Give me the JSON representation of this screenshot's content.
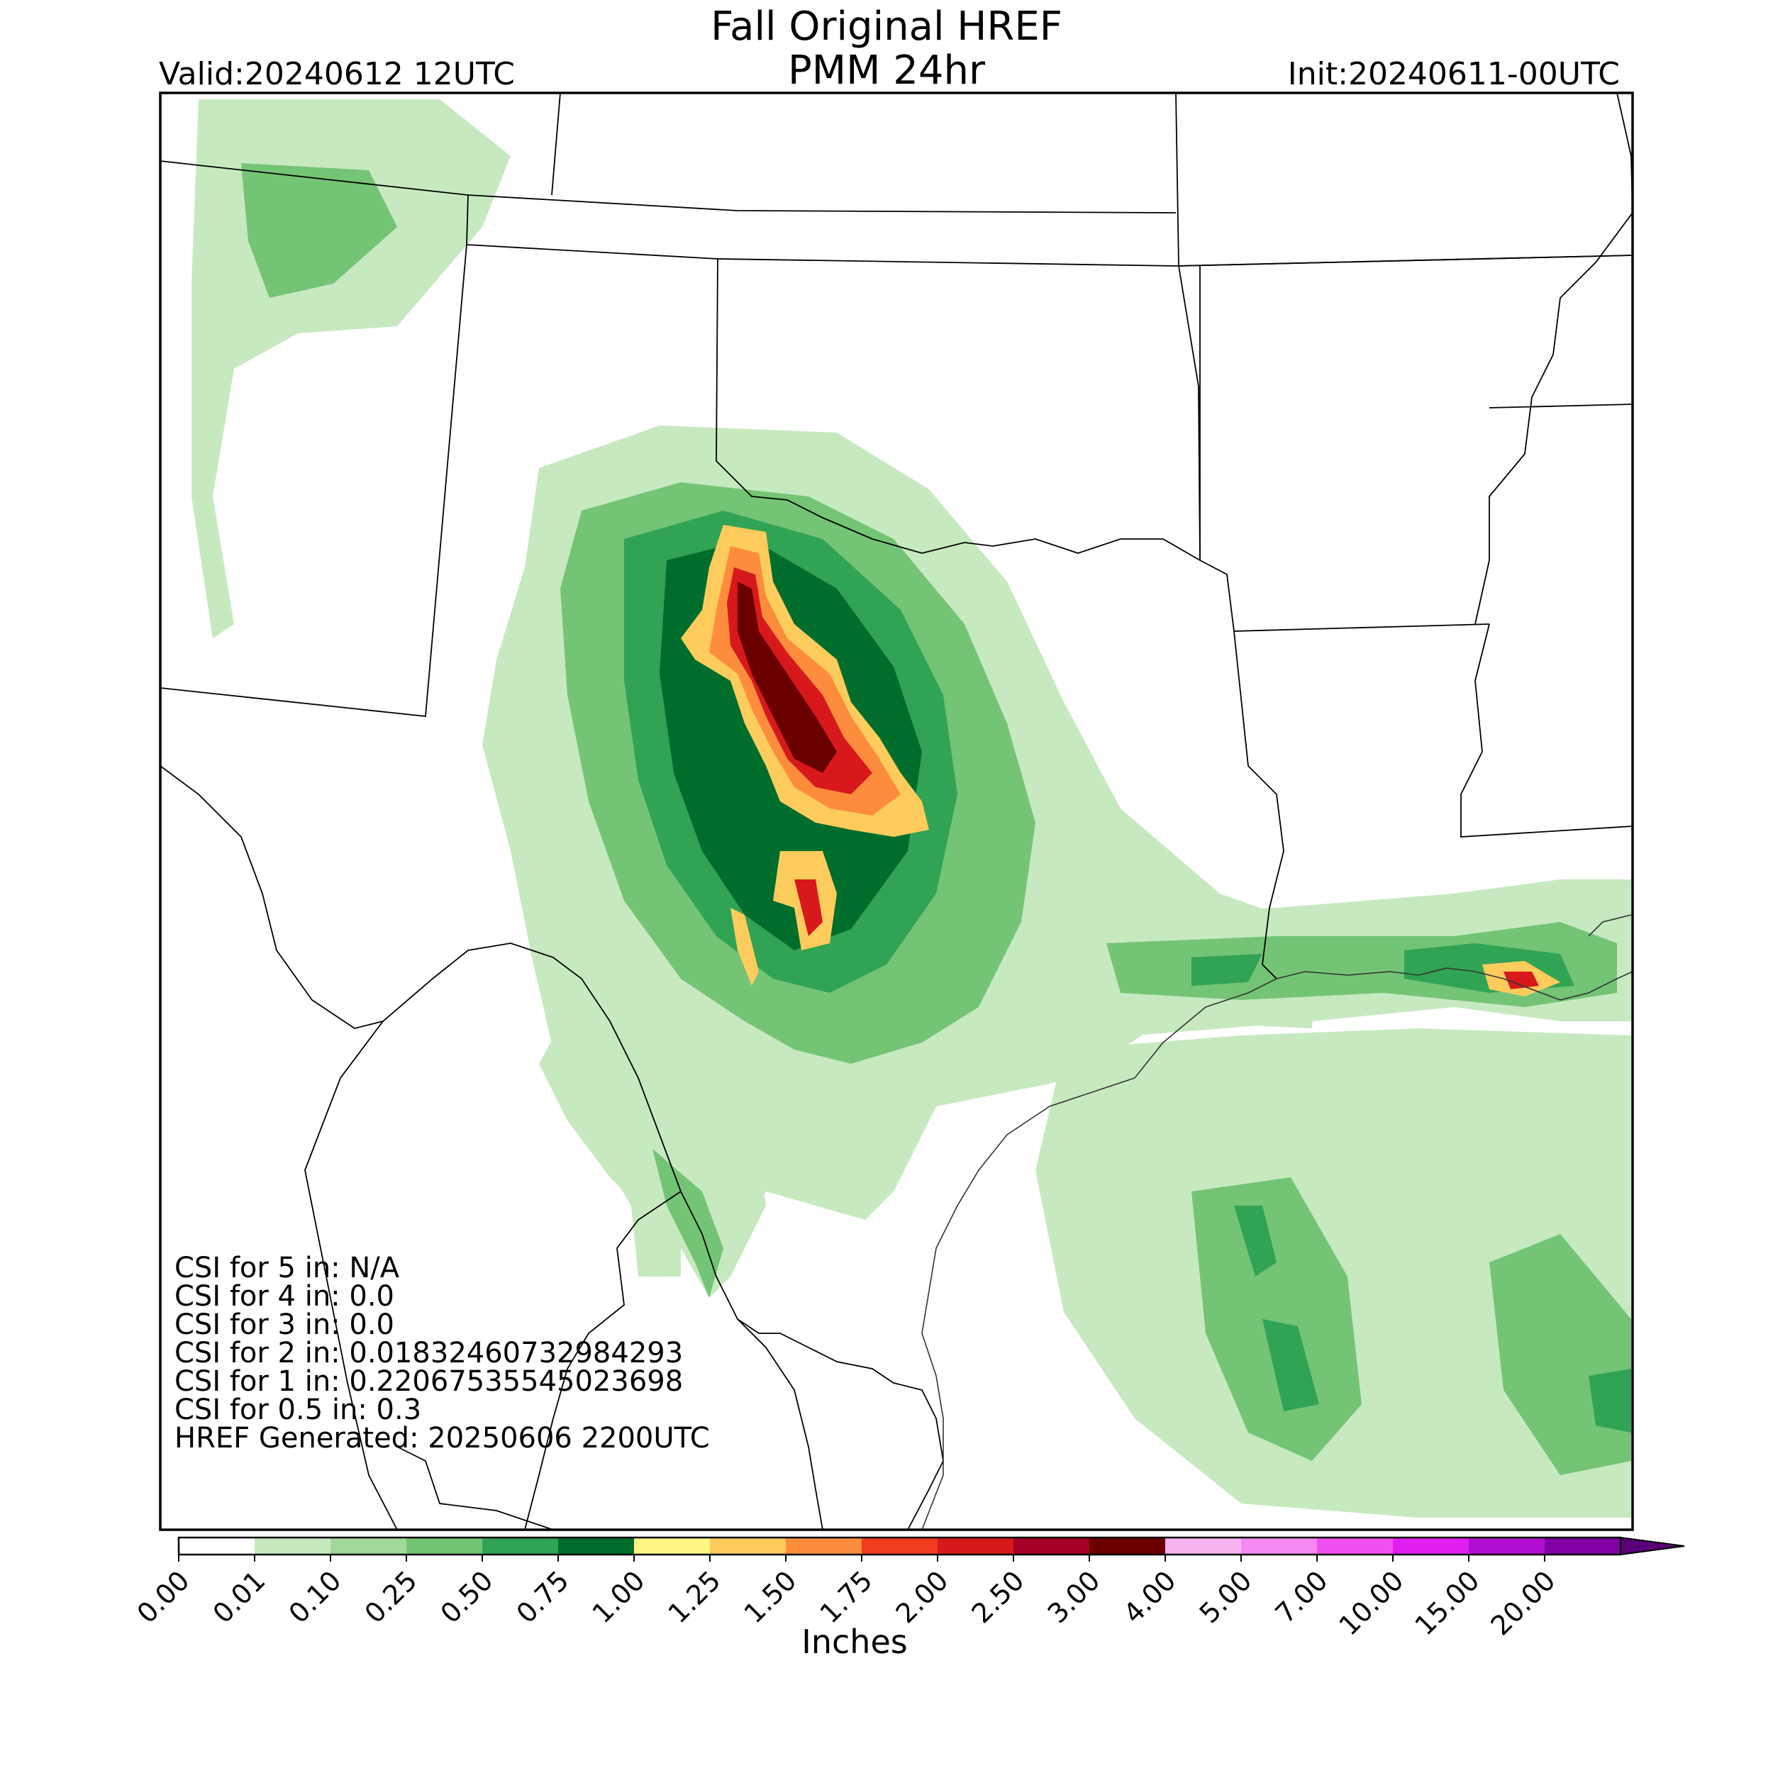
{
  "header": {
    "title_line1": "Fall Original HREF",
    "title_line2": "PMM 24hr",
    "valid": "Valid:20240612 12UTC",
    "init": "Init:20240611-00UTC"
  },
  "stats": [
    "CSI for 5 in: N/A",
    "CSI for 4 in: 0.0",
    "CSI for 3 in: 0.0",
    "CSI for 2 in: 0.01832460732984293",
    "CSI for 1 in: 0.22067535545023698",
    "CSI for 0.5 in: 0.3",
    "HREF Generated: 20250606 2200UTC"
  ],
  "colorbar": {
    "label": "Inches",
    "ticks": [
      "0.00",
      "0.01",
      "0.10",
      "0.25",
      "0.50",
      "0.75",
      "1.00",
      "1.25",
      "1.50",
      "1.75",
      "2.00",
      "2.50",
      "3.00",
      "4.00",
      "5.00",
      "7.00",
      "10.00",
      "15.00",
      "20.00"
    ],
    "colors": [
      "#ffffff",
      "#c7e9c0",
      "#a1d99b",
      "#74c476",
      "#31a354",
      "#006d2c",
      "#fff685",
      "#fecc5c",
      "#fd8d3c",
      "#f03b20",
      "#d7191c",
      "#a50026",
      "#6b0000",
      "#f7b4f0",
      "#f589ef",
      "#f24ff0",
      "#e11ef0",
      "#b00fcf",
      "#8000a6"
    ],
    "extend_color": "#5a0077"
  },
  "map_colors": {
    "light_green": "#c7e9c0",
    "mid_green": "#74c476",
    "dark_green": "#31a354",
    "deep_green": "#006d2c",
    "yellow": "#fecc5c",
    "orange": "#fd8d3c",
    "red": "#d7191c",
    "dark_red": "#a50026",
    "maroon": "#6b0000",
    "border": "#000000"
  }
}
